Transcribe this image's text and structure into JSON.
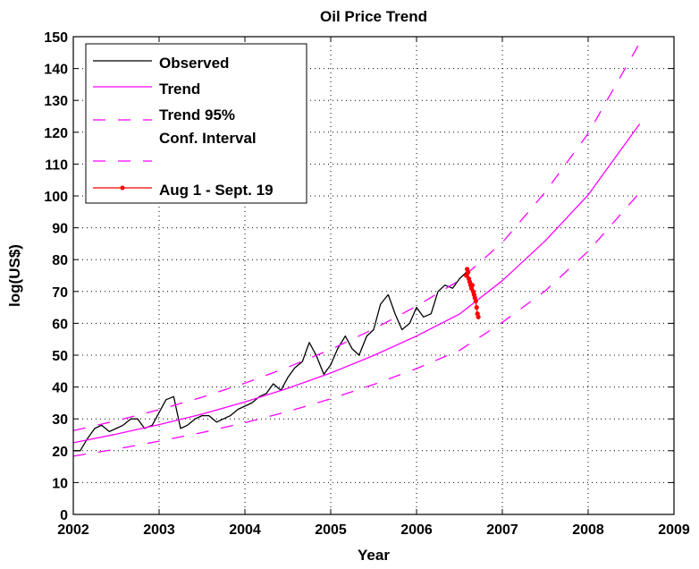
{
  "chart_data": {
    "type": "line",
    "title": "Oil Price Trend",
    "xlabel": "Year",
    "ylabel": "log(US$)",
    "xlim": [
      2002,
      2009
    ],
    "ylim": [
      0,
      150
    ],
    "x_ticks": [
      "2002",
      "2003",
      "2004",
      "2005",
      "2006",
      "2007",
      "2008",
      "2009"
    ],
    "y_ticks": [
      "0",
      "10",
      "20",
      "30",
      "40",
      "50",
      "60",
      "70",
      "80",
      "90",
      "100",
      "110",
      "120",
      "130",
      "140",
      "150"
    ],
    "grid": true,
    "legend_position": "top-left",
    "legend": {
      "observed": "Observed",
      "trend": "Trend",
      "conf_line1": "Trend 95%",
      "conf_line2": "Conf. Interval",
      "recent": "Aug 1 - Sept. 19"
    },
    "colors": {
      "observed": "#000000",
      "trend": "#ff00ff",
      "confidence": "#ff00ff",
      "recent": "#ff0000"
    },
    "series": [
      {
        "name": "Observed",
        "style": "solid",
        "x": [
          2002.0,
          2002.08,
          2002.17,
          2002.25,
          2002.33,
          2002.42,
          2002.5,
          2002.58,
          2002.67,
          2002.75,
          2002.83,
          2002.92,
          2003.0,
          2003.08,
          2003.17,
          2003.25,
          2003.33,
          2003.42,
          2003.5,
          2003.58,
          2003.67,
          2003.75,
          2003.83,
          2003.92,
          2004.0,
          2004.08,
          2004.17,
          2004.25,
          2004.33,
          2004.42,
          2004.5,
          2004.58,
          2004.67,
          2004.75,
          2004.83,
          2004.92,
          2005.0,
          2005.08,
          2005.17,
          2005.25,
          2005.33,
          2005.42,
          2005.5,
          2005.58,
          2005.67,
          2005.75,
          2005.83,
          2005.92,
          2006.0,
          2006.08,
          2006.17,
          2006.25,
          2006.33,
          2006.42,
          2006.5,
          2006.58
        ],
        "y": [
          20,
          20,
          24,
          27,
          28,
          26,
          27,
          28,
          30,
          30,
          27,
          28,
          32,
          36,
          37,
          27,
          28,
          30,
          31,
          31,
          29,
          30,
          31,
          33,
          34,
          35,
          37,
          38,
          41,
          39,
          43,
          46,
          48,
          54,
          50,
          44,
          47,
          52,
          56,
          52,
          50,
          56,
          58,
          66,
          69,
          63,
          58,
          60,
          65,
          62,
          63,
          70,
          72,
          71,
          74,
          76
        ]
      },
      {
        "name": "Trend",
        "style": "solid",
        "x": [
          2002.0,
          2002.5,
          2003.0,
          2003.5,
          2004.0,
          2004.5,
          2005.0,
          2005.5,
          2006.0,
          2006.5,
          2007.0,
          2007.5,
          2008.0,
          2008.6
        ],
        "y": [
          22.5,
          25.2,
          28.2,
          31.5,
          35.3,
          39.6,
          44.4,
          49.9,
          56.0,
          62.9,
          73.4,
          85.9,
          100.3,
          122.6
        ]
      },
      {
        "name": "Trend 95% Conf. Interval",
        "style": "dashed",
        "x": [
          2002.0,
          2002.5,
          2003.0,
          2003.5,
          2004.0,
          2004.5,
          2005.0,
          2005.5,
          2006.0,
          2006.5,
          2007.0,
          2007.5,
          2008.0,
          2008.6
        ],
        "y": [
          26.3,
          29.4,
          32.9,
          36.8,
          41.2,
          46.2,
          51.8,
          58.2,
          65.4,
          73.5,
          85.4,
          101.2,
          119.6,
          148.0
        ]
      },
      {
        "name": "Trend 95% Conf. Interval",
        "style": "dashed",
        "x": [
          2002.0,
          2002.5,
          2003.0,
          2003.5,
          2004.0,
          2004.5,
          2005.0,
          2005.5,
          2006.0,
          2006.5,
          2007.0,
          2007.5,
          2008.0,
          2008.6
        ],
        "y": [
          18.3,
          20.5,
          23.0,
          25.7,
          28.8,
          32.3,
          36.3,
          40.8,
          45.8,
          51.5,
          60.3,
          70.2,
          82.6,
          101.0
        ]
      },
      {
        "name": "Aug 1 - Sept. 19",
        "style": "markers",
        "x": [
          2006.58,
          2006.59,
          2006.6,
          2006.61,
          2006.62,
          2006.63,
          2006.64,
          2006.65,
          2006.66,
          2006.67,
          2006.68,
          2006.69,
          2006.7,
          2006.71,
          2006.72
        ],
        "y": [
          75,
          77,
          76,
          74,
          73,
          72,
          71,
          72,
          70,
          69,
          68,
          67,
          65,
          63,
          62
        ]
      }
    ]
  }
}
